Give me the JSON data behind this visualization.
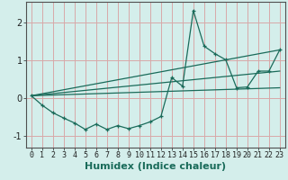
{
  "title": "",
  "xlabel": "Humidex (Indice chaleur)",
  "ylabel": "",
  "background_color": "#d4eeeb",
  "grid_color": "#d8a8a8",
  "line_color": "#1a6b5a",
  "xlim": [
    -0.5,
    23.5
  ],
  "ylim": [
    -1.3,
    2.55
  ],
  "x_ticks": [
    0,
    1,
    2,
    3,
    4,
    5,
    6,
    7,
    8,
    9,
    10,
    11,
    12,
    13,
    14,
    15,
    16,
    17,
    18,
    19,
    20,
    21,
    22,
    23
  ],
  "y_ticks": [
    -1,
    0,
    1,
    2
  ],
  "series1_x": [
    0,
    1,
    2,
    3,
    4,
    5,
    6,
    7,
    8,
    9,
    10,
    11,
    12,
    13,
    14,
    15,
    16,
    17,
    18,
    19,
    20,
    21,
    22,
    23
  ],
  "series1_y": [
    0.07,
    -0.18,
    -0.38,
    -0.52,
    -0.65,
    -0.82,
    -0.68,
    -0.82,
    -0.72,
    -0.8,
    -0.72,
    -0.62,
    -0.48,
    0.55,
    0.32,
    2.32,
    1.38,
    1.18,
    1.02,
    0.28,
    0.3,
    0.72,
    0.72,
    1.28
  ],
  "series2_x": [
    0,
    23
  ],
  "series2_y": [
    0.07,
    0.28
  ],
  "series3_x": [
    0,
    23
  ],
  "series3_y": [
    0.07,
    0.72
  ],
  "series4_x": [
    0,
    23
  ],
  "series4_y": [
    0.07,
    1.28
  ],
  "fontsize_xlabel": 8,
  "fontsize_ticks": 6
}
